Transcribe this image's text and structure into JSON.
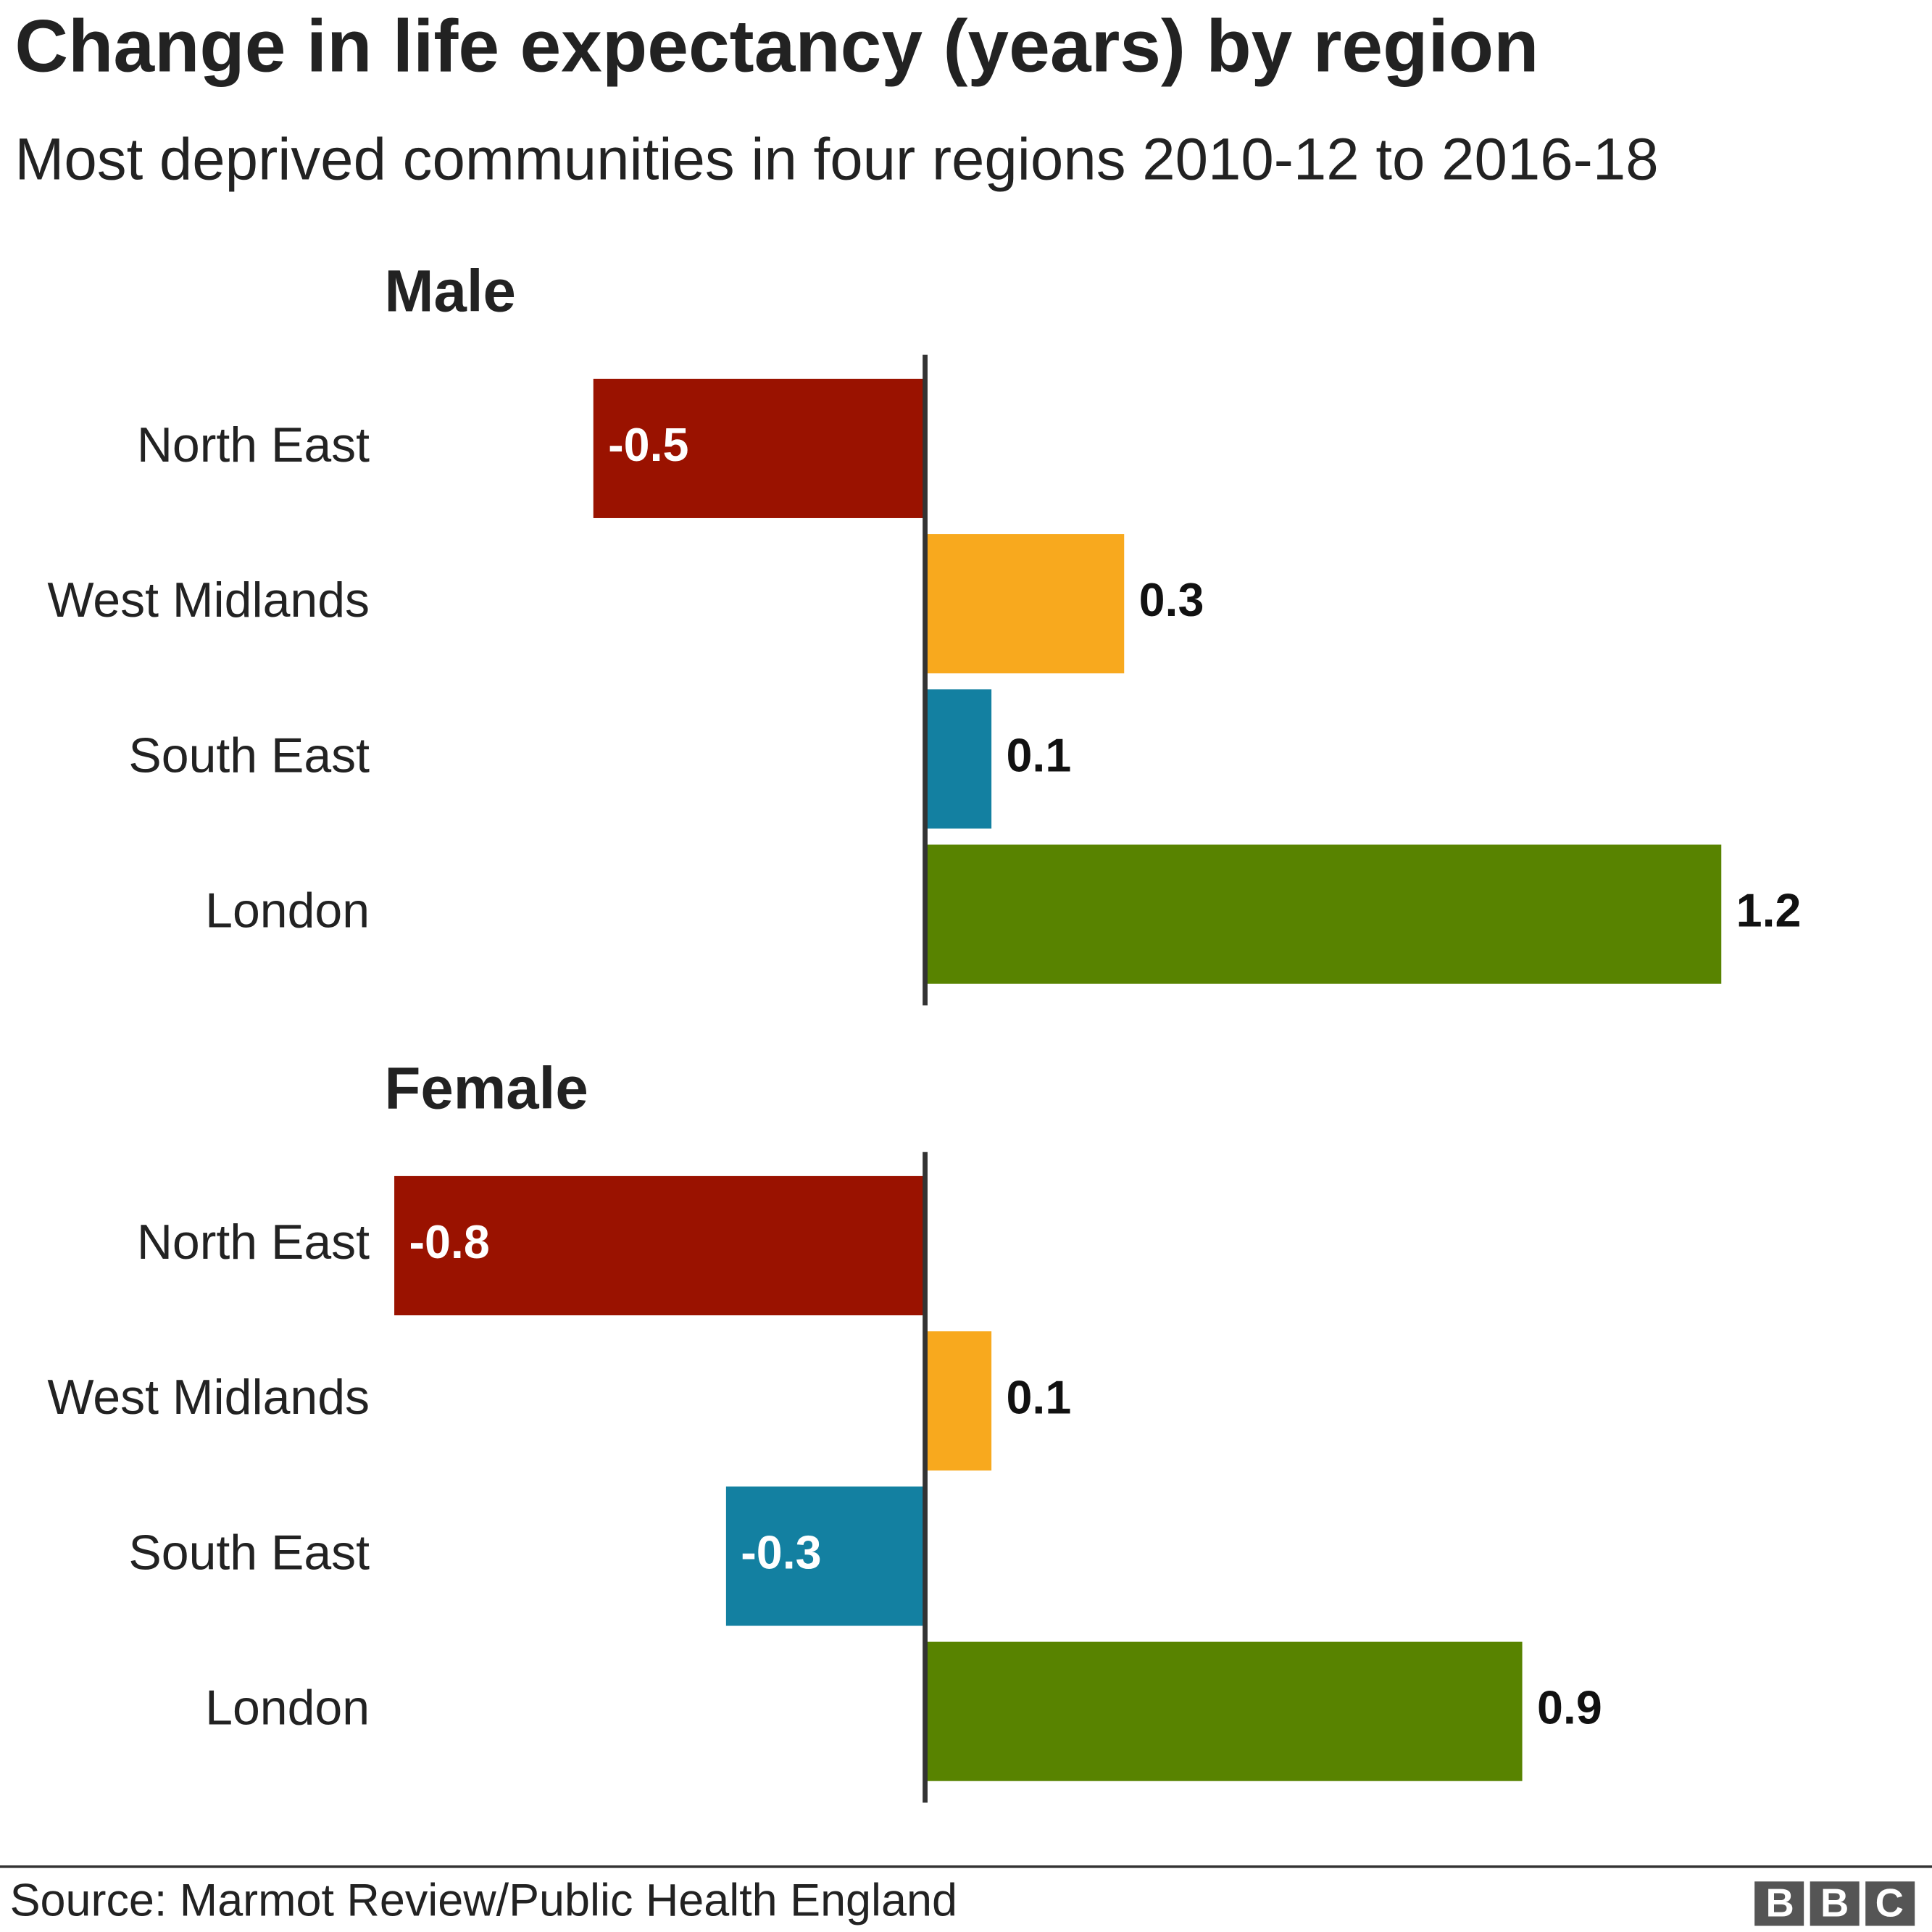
{
  "title": "Change in life expectancy (years) by region",
  "subtitle": "Most deprived communities in four regions 2010-12 to 2016-18",
  "source": "Source: Marmot Review/Public Health England",
  "logo": "BBC",
  "chart_data": [
    {
      "type": "hbar",
      "title": "Male",
      "categories": [
        "North East",
        "West Midlands",
        "South East",
        "London"
      ],
      "values": [
        -0.5,
        0.3,
        0.1,
        1.2
      ],
      "colors": [
        "#9a1200",
        "#f8a91e",
        "#1380a1",
        "#588300"
      ],
      "xlim": [
        -0.8,
        1.2
      ]
    },
    {
      "type": "hbar",
      "title": "Female",
      "categories": [
        "North East",
        "West Midlands",
        "South East",
        "London"
      ],
      "values": [
        -0.8,
        0.1,
        -0.3,
        0.9
      ],
      "colors": [
        "#9a1200",
        "#f8a91e",
        "#1380a1",
        "#588300"
      ],
      "xlim": [
        -0.8,
        1.2
      ]
    }
  ]
}
